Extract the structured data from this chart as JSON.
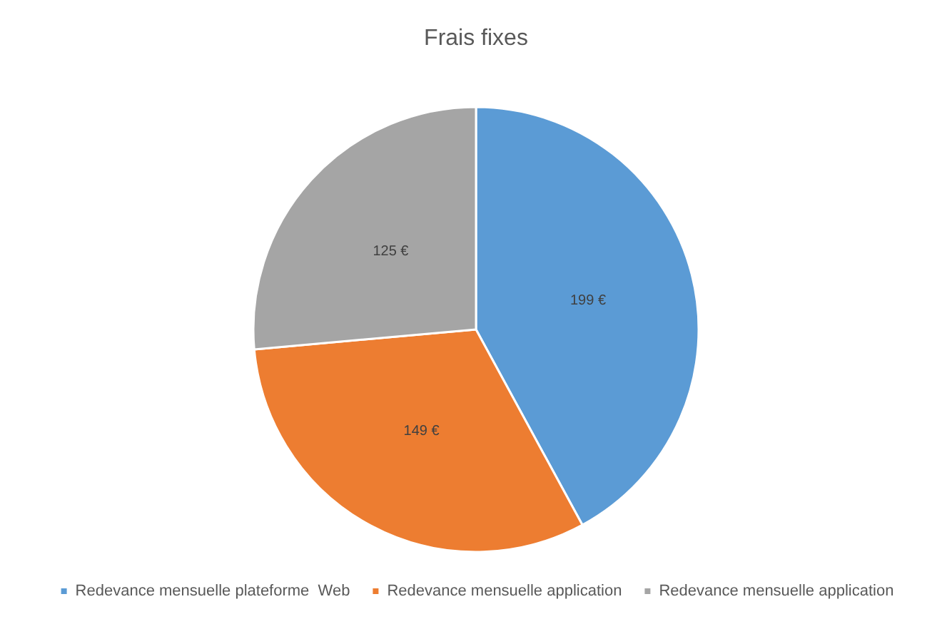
{
  "chart_data": {
    "type": "pie",
    "title": "Frais fixes",
    "categories": [
      "Redevance mensuelle plateforme  Web",
      "Redevance mensuelle application",
      "Redevance mensuelle application"
    ],
    "values": [
      199,
      149,
      125
    ],
    "colors": [
      "#5b9bd5",
      "#ed7d31",
      "#a5a5a5"
    ],
    "value_labels": [
      "199 €",
      "149 €",
      "125 €"
    ],
    "legend": "bottom"
  }
}
